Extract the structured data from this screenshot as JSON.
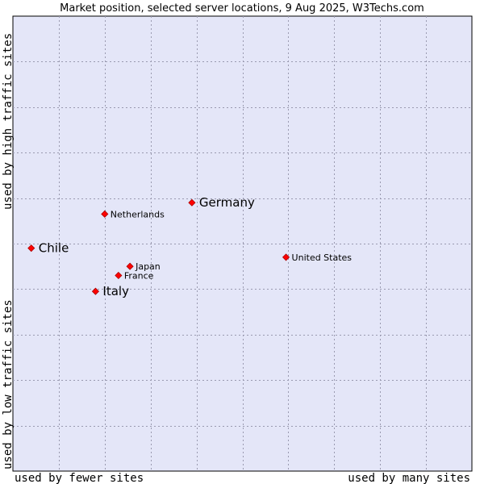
{
  "chart_data": {
    "type": "scatter",
    "title": "Market position, selected server locations, 9 Aug 2025, W3Techs.com",
    "xlabel_left": "used by fewer sites",
    "xlabel_right": "used by many sites",
    "ylabel_top": "used by high traffic sites",
    "ylabel_bottom": "used by low traffic sites",
    "xlim": [
      0,
      10
    ],
    "ylim": [
      0,
      10
    ],
    "grid": true,
    "marker_color": "#ff0000",
    "plot_background": "#e4e6f8",
    "points": [
      {
        "label": "Germany",
        "x": 3.9,
        "y": 5.9,
        "emphasis": true
      },
      {
        "label": "Netherlands",
        "x": 2.0,
        "y": 5.65,
        "emphasis": false
      },
      {
        "label": "Chile",
        "x": 0.4,
        "y": 4.9,
        "emphasis": true
      },
      {
        "label": "United States",
        "x": 5.95,
        "y": 4.7,
        "emphasis": false
      },
      {
        "label": "Japan",
        "x": 2.55,
        "y": 4.5,
        "emphasis": false
      },
      {
        "label": "France",
        "x": 2.3,
        "y": 4.3,
        "emphasis": false
      },
      {
        "label": "Italy",
        "x": 1.8,
        "y": 3.95,
        "emphasis": true
      }
    ]
  }
}
